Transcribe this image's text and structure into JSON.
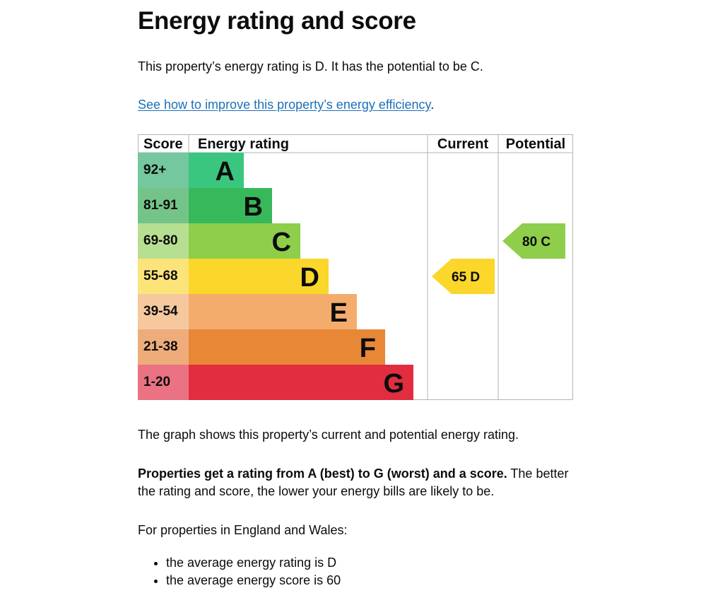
{
  "heading": "Energy rating and score",
  "intro": "This property’s energy rating is D. It has the potential to be C.",
  "improve_link": "See how to improve this property’s energy efficiency",
  "improve_link_suffix": ".",
  "graph_note": "The graph shows this property’s current and potential energy rating.",
  "rating_explainer_bold": "Properties get a rating from A (best) to G (worst) and a score.",
  "rating_explainer_rest": " The better the rating and score, the lower your energy bills are likely to be.",
  "regional_intro": "For properties in England and Wales:",
  "averages": [
    "the average energy rating is D",
    "the average energy score is 60"
  ],
  "chart_data": {
    "type": "bar",
    "headers": {
      "score": "Score",
      "rating": "Energy rating",
      "current": "Current",
      "potential": "Potential"
    },
    "bands": [
      {
        "letter": "A",
        "range": "92+",
        "color": "#3bc680",
        "score_bg": "#74c79e"
      },
      {
        "letter": "B",
        "range": "81-91",
        "color": "#37b85a",
        "score_bg": "#74c48a"
      },
      {
        "letter": "C",
        "range": "69-80",
        "color": "#8ece4b",
        "score_bg": "#b7df91"
      },
      {
        "letter": "D",
        "range": "55-68",
        "color": "#fbd62b",
        "score_bg": "#fce47a"
      },
      {
        "letter": "E",
        "range": "39-54",
        "color": "#f4ac6d",
        "score_bg": "#f6c89e"
      },
      {
        "letter": "F",
        "range": "21-38",
        "color": "#e88736",
        "score_bg": "#eeac7b"
      },
      {
        "letter": "G",
        "range": "1-20",
        "color": "#e22c40",
        "score_bg": "#ea7283"
      }
    ],
    "current": {
      "score": 65,
      "letter": "D",
      "label": "65  D",
      "color": "#fbd62b"
    },
    "potential": {
      "score": 80,
      "letter": "C",
      "label": "80  C",
      "color": "#8ece4b"
    }
  }
}
